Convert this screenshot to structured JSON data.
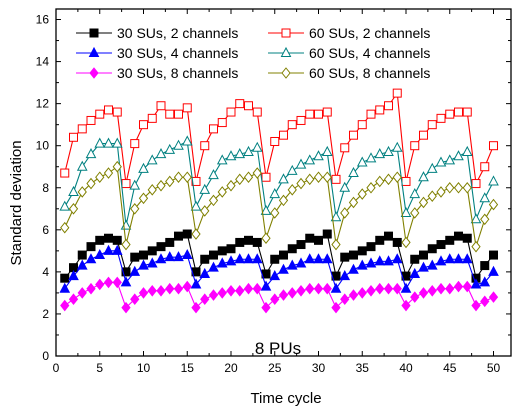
{
  "chart_data": {
    "type": "line",
    "title": "",
    "xlabel": "Time cycle",
    "ylabel": "Standard deviation",
    "annotation": "8 PUs",
    "xlim": [
      0,
      52
    ],
    "ylim": [
      0,
      16.5
    ],
    "xticks": [
      0,
      5,
      10,
      15,
      20,
      25,
      30,
      35,
      40,
      45,
      50
    ],
    "yticks": [
      0,
      2,
      4,
      6,
      8,
      10,
      12,
      14,
      16
    ],
    "grid": false,
    "legend_position": "top",
    "x": [
      1,
      2,
      3,
      4,
      5,
      6,
      7,
      8,
      9,
      10,
      11,
      12,
      13,
      14,
      15,
      16,
      17,
      18,
      19,
      20,
      21,
      22,
      23,
      24,
      25,
      26,
      27,
      28,
      29,
      30,
      31,
      32,
      33,
      34,
      35,
      36,
      37,
      38,
      39,
      40,
      41,
      42,
      43,
      44,
      45,
      46,
      47,
      48,
      49,
      50
    ],
    "series": [
      {
        "name": "30 SUs, 2 channels",
        "color": "#000000",
        "marker": "square-filled",
        "values": [
          3.7,
          4.2,
          4.8,
          5.2,
          5.5,
          5.6,
          5.5,
          4.0,
          4.7,
          4.8,
          5.0,
          5.2,
          5.4,
          5.7,
          5.8,
          4.0,
          4.6,
          4.8,
          5.0,
          5.1,
          5.4,
          5.5,
          5.4,
          3.9,
          4.6,
          4.8,
          5.1,
          5.3,
          5.6,
          5.5,
          5.8,
          3.8,
          4.7,
          4.8,
          5.0,
          5.2,
          5.5,
          5.7,
          5.4,
          3.8,
          4.6,
          4.8,
          5.1,
          5.3,
          5.5,
          5.7,
          5.6,
          3.7,
          4.3,
          4.8
        ]
      },
      {
        "name": "30 SUs, 4 channels",
        "color": "#0000ff",
        "marker": "triangle-filled",
        "values": [
          3.2,
          3.8,
          4.3,
          4.6,
          4.8,
          5.0,
          5.0,
          3.5,
          4.0,
          4.3,
          4.4,
          4.6,
          4.7,
          4.7,
          4.8,
          3.4,
          3.9,
          4.2,
          4.4,
          4.5,
          4.6,
          4.6,
          4.6,
          3.3,
          3.8,
          4.1,
          4.3,
          4.4,
          4.6,
          4.6,
          4.6,
          3.2,
          3.8,
          4.1,
          4.3,
          4.4,
          4.5,
          4.5,
          4.6,
          3.2,
          3.9,
          4.2,
          4.3,
          4.5,
          4.6,
          4.6,
          4.6,
          3.4,
          3.5,
          4.0
        ]
      },
      {
        "name": "30 SUs, 8 channels",
        "color": "#ff00ff",
        "marker": "diamond-filled",
        "values": [
          2.4,
          2.7,
          3.0,
          3.2,
          3.4,
          3.5,
          3.5,
          2.3,
          2.7,
          3.0,
          3.1,
          3.1,
          3.2,
          3.2,
          3.3,
          2.3,
          2.7,
          2.9,
          3.0,
          3.1,
          3.1,
          3.2,
          3.2,
          2.3,
          2.7,
          2.9,
          3.0,
          3.1,
          3.2,
          3.2,
          3.2,
          2.3,
          2.7,
          2.9,
          3.0,
          3.1,
          3.2,
          3.2,
          3.2,
          2.4,
          2.8,
          3.0,
          3.1,
          3.2,
          3.2,
          3.3,
          3.3,
          2.4,
          2.6,
          2.8
        ]
      },
      {
        "name": "60 SUs, 2 channels",
        "color": "#ff0000",
        "marker": "square-open",
        "values": [
          8.7,
          10.4,
          10.8,
          11.2,
          11.5,
          11.7,
          11.6,
          8.2,
          10.1,
          11.0,
          11.3,
          11.9,
          11.5,
          11.5,
          11.8,
          8.3,
          10.0,
          10.8,
          11.1,
          11.6,
          12.0,
          11.9,
          11.6,
          8.5,
          10.2,
          10.5,
          11.0,
          11.2,
          11.5,
          11.5,
          11.6,
          8.4,
          9.9,
          10.5,
          11.0,
          11.5,
          11.7,
          11.9,
          12.5,
          8.3,
          10.0,
          10.5,
          11.0,
          11.3,
          11.5,
          11.6,
          11.6,
          8.2,
          9.0,
          10.0
        ]
      },
      {
        "name": "60 SUs, 4 channels",
        "color": "#008080",
        "marker": "triangle-open",
        "values": [
          7.1,
          7.8,
          9.0,
          9.6,
          10.1,
          10.1,
          10.1,
          6.2,
          8.1,
          8.9,
          9.3,
          9.6,
          9.8,
          10.0,
          10.2,
          7.1,
          7.9,
          8.6,
          9.3,
          9.5,
          9.6,
          9.7,
          9.9,
          6.9,
          7.7,
          8.4,
          8.8,
          9.1,
          9.3,
          9.5,
          9.7,
          6.6,
          8.0,
          8.7,
          9.2,
          9.4,
          9.6,
          9.7,
          9.9,
          6.8,
          7.7,
          8.5,
          8.9,
          9.2,
          9.3,
          9.5,
          9.7,
          6.5,
          7.5,
          8.3
        ]
      },
      {
        "name": "60 SUs, 8 channels",
        "color": "#808000",
        "marker": "diamond-open",
        "values": [
          6.1,
          7.0,
          7.8,
          8.2,
          8.5,
          8.7,
          9.0,
          5.3,
          7.0,
          7.5,
          7.9,
          8.1,
          8.3,
          8.5,
          8.5,
          5.8,
          6.9,
          7.4,
          7.8,
          8.1,
          8.4,
          8.5,
          8.7,
          5.6,
          6.8,
          7.4,
          7.9,
          8.2,
          8.4,
          8.5,
          8.5,
          5.3,
          6.8,
          7.3,
          7.7,
          8.0,
          8.3,
          8.4,
          8.5,
          5.4,
          6.8,
          7.3,
          7.6,
          7.8,
          8.0,
          8.0,
          8.0,
          5.2,
          6.5,
          7.2
        ]
      }
    ]
  }
}
